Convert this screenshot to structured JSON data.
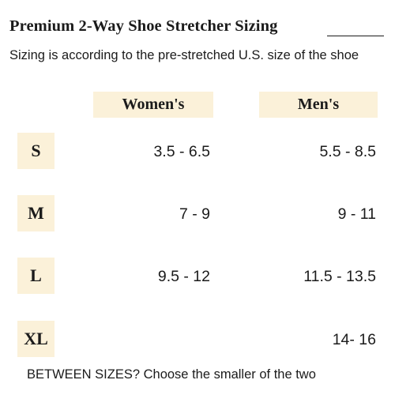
{
  "title": "Premium 2-Way Shoe Stretcher Sizing",
  "subtitle": "Sizing is according to the pre-stretched U.S. size of the shoe",
  "headers": {
    "women": "Women's",
    "men": "Men's"
  },
  "rows": [
    {
      "size": "S",
      "women": "3.5 - 6.5",
      "men": "5.5 - 8.5"
    },
    {
      "size": "M",
      "women": "7 - 9",
      "men": "9 - 11"
    },
    {
      "size": "L",
      "women": "9.5 - 12",
      "men": "11.5 - 13.5"
    },
    {
      "size": "XL",
      "women": "",
      "men": "14- 16"
    }
  ],
  "footer": "BETWEEN SIZES? Choose the smaller of the two",
  "colors": {
    "label_background": "#fbf1d9",
    "text": "#1b1b1b"
  }
}
